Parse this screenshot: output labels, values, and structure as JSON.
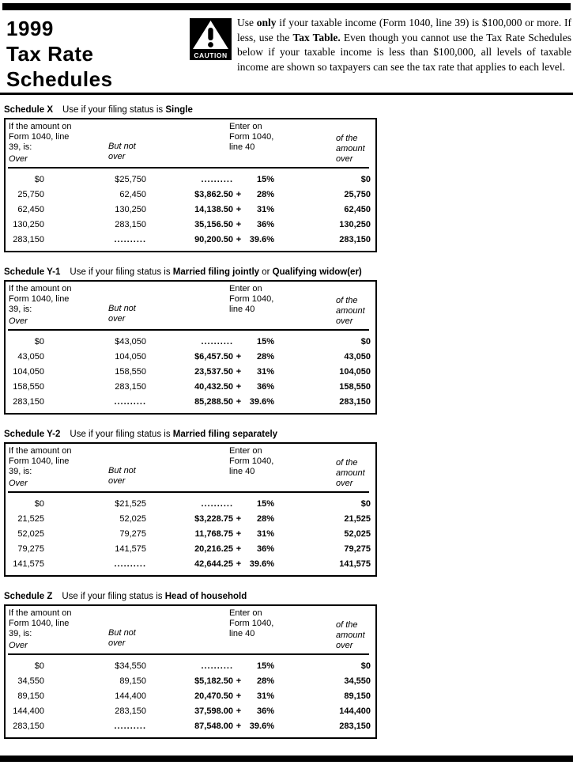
{
  "page": {
    "title_lines": [
      "1999",
      "Tax Rate",
      "Schedules"
    ],
    "caution_label": "CAUTION",
    "notice_parts": [
      {
        "t": "Use ",
        "b": false
      },
      {
        "t": "only",
        "b": true
      },
      {
        "t": " if your taxable income (Form 1040, line 39) is $100,000 or more. If less, use the ",
        "b": false
      },
      {
        "t": "Tax Table.",
        "b": true
      },
      {
        "t": " Even though you cannot use the Tax Rate Schedules below if your taxable income is less than $100,000, all levels of taxable income are shown so taxpayers can see the tax rate that applies to each level.",
        "b": false
      }
    ]
  },
  "column_headers": {
    "amount_lines": [
      "If the amount on",
      "Form 1040, line",
      "39, is:"
    ],
    "over": "Over",
    "but_not_over_lines": [
      "But not",
      "over"
    ],
    "enter_lines": [
      "Enter on",
      "Form 1040,",
      "line 40"
    ],
    "of_amount_lines": [
      "of the",
      "amount",
      "over"
    ],
    "dots": ".........."
  },
  "schedules": [
    {
      "id": "x",
      "name": "Schedule X",
      "title_parts": [
        {
          "t": "Use if your filing status is ",
          "b": false
        },
        {
          "t": "Single",
          "b": true
        }
      ],
      "rows": [
        {
          "over": "$0",
          "not_over": "$25,750",
          "amt": "",
          "plus": "",
          "pct": "15%",
          "of_over": "$0",
          "amt_dots": true,
          "not_over_dots": false
        },
        {
          "over": "25,750",
          "not_over": "62,450",
          "amt": "$3,862.50",
          "plus": "+",
          "pct": "28%",
          "of_over": "25,750",
          "amt_dots": false,
          "not_over_dots": false
        },
        {
          "over": "62,450",
          "not_over": "130,250",
          "amt": "14,138.50",
          "plus": "+",
          "pct": "31%",
          "of_over": "62,450",
          "amt_dots": false,
          "not_over_dots": false
        },
        {
          "over": "130,250",
          "not_over": "283,150",
          "amt": "35,156.50",
          "plus": "+",
          "pct": "36%",
          "of_over": "130,250",
          "amt_dots": false,
          "not_over_dots": false
        },
        {
          "over": "283,150",
          "not_over": "",
          "amt": "90,200.50",
          "plus": "+",
          "pct": "39.6%",
          "of_over": "283,150",
          "amt_dots": false,
          "not_over_dots": true
        }
      ]
    },
    {
      "id": "y1",
      "name": "Schedule Y-1",
      "title_parts": [
        {
          "t": "Use if your filing status is ",
          "b": false
        },
        {
          "t": "Married filing jointly",
          "b": true
        },
        {
          "t": " or ",
          "b": false
        },
        {
          "t": "Qualifying widow(er)",
          "b": true
        }
      ],
      "rows": [
        {
          "over": "$0",
          "not_over": "$43,050",
          "amt": "",
          "plus": "",
          "pct": "15%",
          "of_over": "$0",
          "amt_dots": true,
          "not_over_dots": false
        },
        {
          "over": "43,050",
          "not_over": "104,050",
          "amt": "$6,457.50",
          "plus": "+",
          "pct": "28%",
          "of_over": "43,050",
          "amt_dots": false,
          "not_over_dots": false
        },
        {
          "over": "104,050",
          "not_over": "158,550",
          "amt": "23,537.50",
          "plus": "+",
          "pct": "31%",
          "of_over": "104,050",
          "amt_dots": false,
          "not_over_dots": false
        },
        {
          "over": "158,550",
          "not_over": "283,150",
          "amt": "40,432.50",
          "plus": "+",
          "pct": "36%",
          "of_over": "158,550",
          "amt_dots": false,
          "not_over_dots": false
        },
        {
          "over": "283,150",
          "not_over": "",
          "amt": "85,288.50",
          "plus": "+",
          "pct": "39.6%",
          "of_over": "283,150",
          "amt_dots": false,
          "not_over_dots": true
        }
      ]
    },
    {
      "id": "y2",
      "name": "Schedule Y-2",
      "title_parts": [
        {
          "t": "Use if your filing status is ",
          "b": false
        },
        {
          "t": "Married filing separately",
          "b": true
        }
      ],
      "rows": [
        {
          "over": "$0",
          "not_over": "$21,525",
          "amt": "",
          "plus": "",
          "pct": "15%",
          "of_over": "$0",
          "amt_dots": true,
          "not_over_dots": false
        },
        {
          "over": "21,525",
          "not_over": "52,025",
          "amt": "$3,228.75",
          "plus": "+",
          "pct": "28%",
          "of_over": "21,525",
          "amt_dots": false,
          "not_over_dots": false
        },
        {
          "over": "52,025",
          "not_over": "79,275",
          "amt": "11,768.75",
          "plus": "+",
          "pct": "31%",
          "of_over": "52,025",
          "amt_dots": false,
          "not_over_dots": false
        },
        {
          "over": "79,275",
          "not_over": "141,575",
          "amt": "20,216.25",
          "plus": "+",
          "pct": "36%",
          "of_over": "79,275",
          "amt_dots": false,
          "not_over_dots": false
        },
        {
          "over": "141,575",
          "not_over": "",
          "amt": "42,644.25",
          "plus": "+",
          "pct": "39.6%",
          "of_over": "141,575",
          "amt_dots": false,
          "not_over_dots": true
        }
      ]
    },
    {
      "id": "z",
      "name": "Schedule Z",
      "title_parts": [
        {
          "t": "Use if your filing status is ",
          "b": false
        },
        {
          "t": "Head of household",
          "b": true
        }
      ],
      "rows": [
        {
          "over": "$0",
          "not_over": "$34,550",
          "amt": "",
          "plus": "",
          "pct": "15%",
          "of_over": "$0",
          "amt_dots": true,
          "not_over_dots": false
        },
        {
          "over": "34,550",
          "not_over": "89,150",
          "amt": "$5,182.50",
          "plus": "+",
          "pct": "28%",
          "of_over": "34,550",
          "amt_dots": false,
          "not_over_dots": false
        },
        {
          "over": "89,150",
          "not_over": "144,400",
          "amt": "20,470.50",
          "plus": "+",
          "pct": "31%",
          "of_over": "89,150",
          "amt_dots": false,
          "not_over_dots": false
        },
        {
          "over": "144,400",
          "not_over": "283,150",
          "amt": "37,598.00",
          "plus": "+",
          "pct": "36%",
          "of_over": "144,400",
          "amt_dots": false,
          "not_over_dots": false
        },
        {
          "over": "283,150",
          "not_over": "",
          "amt": "87,548.00",
          "plus": "+",
          "pct": "39.6%",
          "of_over": "283,150",
          "amt_dots": false,
          "not_over_dots": true
        }
      ]
    }
  ]
}
